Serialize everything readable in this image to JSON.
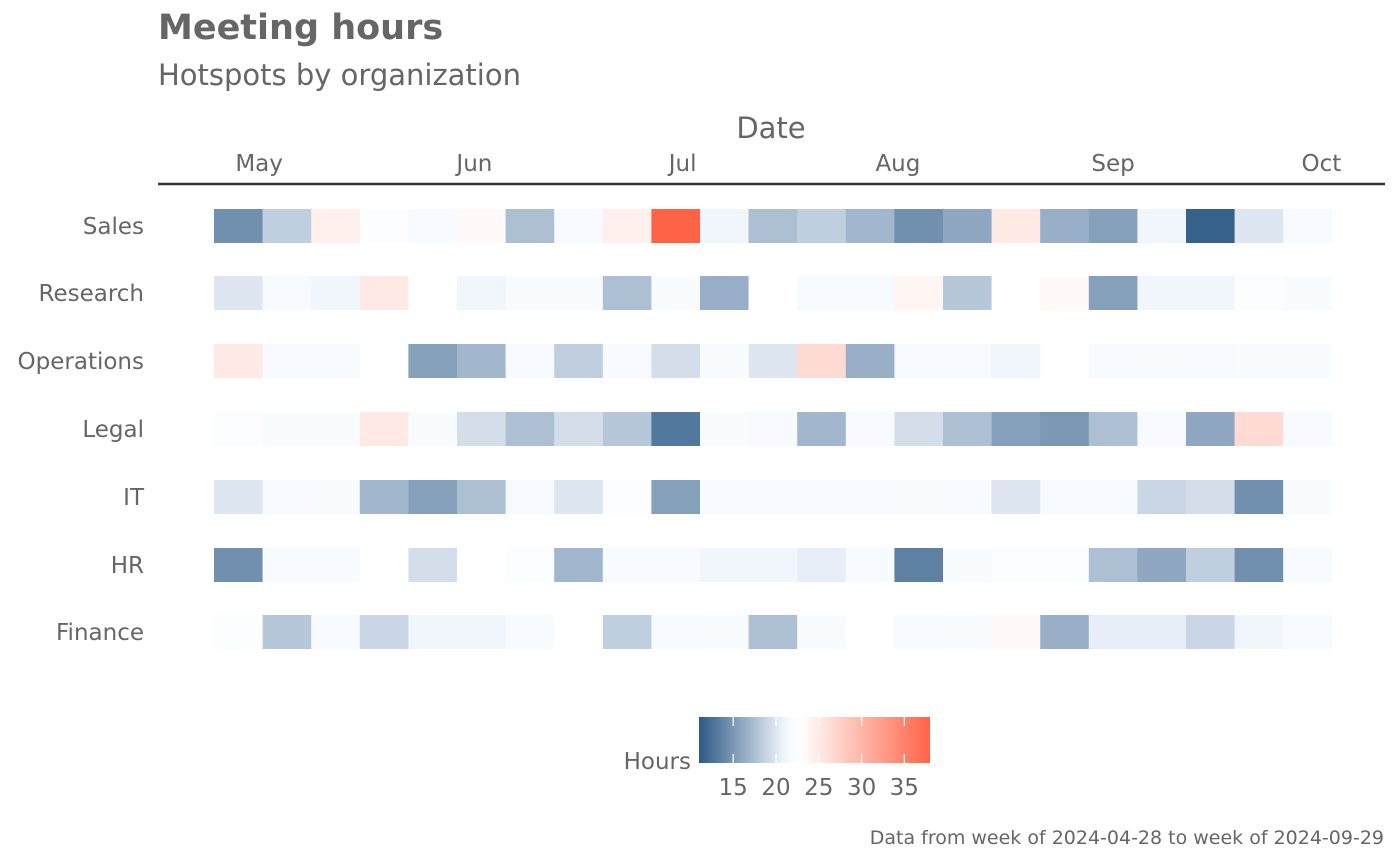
{
  "chart_data": {
    "type": "heatmap",
    "title": "Meeting hours",
    "subtitle": "Hotspots by organization",
    "xlabel": "Date",
    "x_position": "top",
    "x_ticks": [
      {
        "label": "May",
        "date": "2024-05-01"
      },
      {
        "label": "Jun",
        "date": "2024-06-01"
      },
      {
        "label": "Jul",
        "date": "2024-07-01"
      },
      {
        "label": "Aug",
        "date": "2024-08-01"
      },
      {
        "label": "Sep",
        "date": "2024-09-01"
      },
      {
        "label": "Oct",
        "date": "2024-10-01"
      }
    ],
    "weeks": [
      "2024-04-28",
      "2024-05-05",
      "2024-05-12",
      "2024-05-19",
      "2024-05-26",
      "2024-06-02",
      "2024-06-09",
      "2024-06-16",
      "2024-06-23",
      "2024-06-30",
      "2024-07-07",
      "2024-07-14",
      "2024-07-21",
      "2024-07-28",
      "2024-08-04",
      "2024-08-11",
      "2024-08-18",
      "2024-08-25",
      "2024-09-01",
      "2024-09-08",
      "2024-09-15",
      "2024-09-22",
      "2024-09-29"
    ],
    "rows": [
      {
        "name": "Sales",
        "values": [
          14.5,
          18.5,
          24.5,
          22.5,
          21.5,
          23.5,
          17.5,
          21.5,
          24.5,
          38.0,
          21.0,
          17.5,
          18.5,
          17.0,
          14.5,
          16.0,
          25.0,
          16.5,
          15.5,
          21.0,
          11.5,
          20.0,
          21.5
        ]
      },
      {
        "name": "Research",
        "values": [
          20.0,
          21.5,
          21.0,
          25.0,
          23.0,
          21.0,
          22.0,
          22.0,
          17.5,
          22.0,
          16.5,
          23.0,
          21.5,
          21.5,
          24.0,
          18.0,
          23.0,
          23.5,
          15.5,
          21.0,
          21.0,
          22.5,
          22.0
        ]
      },
      {
        "name": "Operations",
        "values": [
          25.0,
          21.5,
          21.5,
          23.0,
          15.5,
          17.0,
          21.5,
          18.5,
          21.5,
          19.5,
          22.0,
          20.0,
          26.5,
          16.5,
          21.5,
          21.5,
          21.0,
          23.0,
          21.5,
          22.0,
          21.5,
          22.0,
          22.0
        ]
      },
      {
        "name": "Legal",
        "values": [
          22.5,
          22.0,
          22.0,
          25.0,
          22.0,
          19.5,
          17.5,
          19.5,
          18.0,
          13.0,
          22.0,
          21.5,
          17.0,
          21.5,
          19.5,
          17.5,
          15.5,
          15.0,
          17.5,
          21.5,
          16.0,
          26.5,
          21.5
        ]
      },
      {
        "name": "IT",
        "values": [
          20.0,
          21.5,
          22.0,
          17.0,
          15.5,
          17.5,
          21.5,
          20.0,
          22.5,
          15.5,
          21.5,
          21.5,
          21.5,
          21.5,
          22.0,
          21.5,
          20.0,
          21.5,
          21.5,
          19.0,
          19.5,
          14.5,
          22.0
        ]
      },
      {
        "name": "HR",
        "values": [
          14.5,
          21.5,
          21.5,
          23.0,
          19.5,
          23.0,
          22.5,
          17.0,
          21.5,
          21.5,
          21.0,
          21.0,
          20.5,
          21.5,
          13.5,
          22.0,
          22.5,
          22.5,
          17.5,
          16.0,
          18.5,
          14.5,
          21.5
        ]
      },
      {
        "name": "Finance",
        "values": [
          22.5,
          18.0,
          21.5,
          19.0,
          21.0,
          21.0,
          21.5,
          23.0,
          18.5,
          21.5,
          22.0,
          17.5,
          22.0,
          23.0,
          21.5,
          22.0,
          23.5,
          16.5,
          20.5,
          20.5,
          19.0,
          21.0,
          21.5
        ]
      }
    ],
    "legend": {
      "title": "Hours",
      "placement": "bottom",
      "ticks": [
        15,
        20,
        25,
        30,
        35
      ],
      "range": [
        11,
        38
      ],
      "midpoint": 23,
      "low_color": "#2c5985",
      "mid_color": "#ffffff",
      "high_color": "#ff6347",
      "near_mid_low": "#f5f9ff"
    },
    "caption": "Data from week of 2024-04-28 to week of 2024-09-29",
    "grid": false
  }
}
